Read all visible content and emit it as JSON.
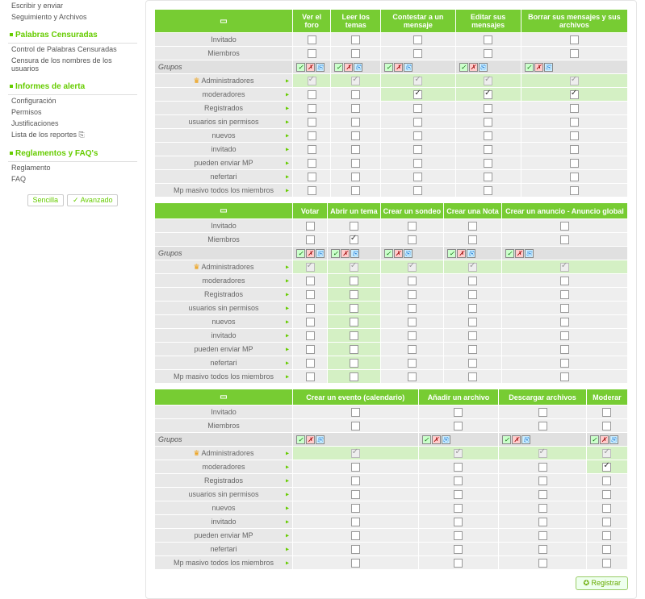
{
  "sidebar": {
    "loose_items": [
      "Escribir y enviar",
      "Seguimiento y Archivos"
    ],
    "sections": [
      {
        "title": "Palabras Censuradas",
        "items": [
          "Control de Palabras Censuradas",
          "Censura de los nombres de los usuarios"
        ]
      },
      {
        "title": "Informes de alerta",
        "items": [
          "Configuración",
          "Permisos",
          "Justificaciones",
          "Lista de los reportes ⎘"
        ]
      },
      {
        "title": "Reglamentos y FAQ's",
        "items": [
          "Reglamento",
          "FAQ"
        ]
      }
    ],
    "toggle_simple": "Sencilla",
    "toggle_advanced": "✓ Avanzado"
  },
  "row_labels": {
    "invitado": "Invitado",
    "miembros": "Miembros",
    "grupos": "Grupos",
    "administradores": "Administradores",
    "moderadores": "moderadores",
    "registrados": "Registrados",
    "usuarios_sin": "usuarios sin permisos",
    "nuevos": "nuevos",
    "invitado2": "invitado",
    "pueden_mp": "pueden enviar MP",
    "nefertari": "nefertari",
    "mp_masivo": "Mp masivo todos los miembros"
  },
  "tables": [
    {
      "headers": [
        "Ver el foro",
        "Leer los temas",
        "Contestar a un mensaje",
        "Editar sus mensajes",
        "Borrar sus mensajes y sus archivos"
      ],
      "rows": [
        {
          "k": "invitado",
          "g": false,
          "c": [
            0,
            0,
            0,
            0,
            0
          ]
        },
        {
          "k": "miembros",
          "g": false,
          "c": [
            0,
            0,
            0,
            0,
            0
          ]
        },
        {
          "k": "grupos",
          "grp": true,
          "ic": true
        },
        {
          "k": "administradores",
          "g": true,
          "crown": true,
          "c": [
            3,
            3,
            3,
            3,
            3
          ]
        },
        {
          "k": "moderadores",
          "g": true,
          "c": [
            0,
            0,
            2,
            2,
            2
          ]
        },
        {
          "k": "registrados",
          "g": true,
          "c": [
            0,
            0,
            0,
            0,
            0
          ]
        },
        {
          "k": "usuarios_sin",
          "g": true,
          "c": [
            0,
            0,
            0,
            0,
            0
          ]
        },
        {
          "k": "nuevos",
          "g": true,
          "c": [
            0,
            0,
            0,
            0,
            0
          ]
        },
        {
          "k": "invitado2",
          "g": true,
          "c": [
            0,
            0,
            0,
            0,
            0
          ]
        },
        {
          "k": "pueden_mp",
          "g": true,
          "c": [
            0,
            0,
            0,
            0,
            0
          ]
        },
        {
          "k": "nefertari",
          "g": true,
          "c": [
            0,
            0,
            0,
            0,
            0
          ]
        },
        {
          "k": "mp_masivo",
          "g": true,
          "c": [
            0,
            0,
            0,
            0,
            0
          ]
        }
      ]
    },
    {
      "headers": [
        "Votar",
        "Abrir un tema",
        "Crear un sondeo",
        "Crear una Nota",
        "Crear un anuncio - Anuncio global"
      ],
      "rows": [
        {
          "k": "invitado",
          "g": false,
          "c": [
            0,
            0,
            0,
            0,
            0
          ]
        },
        {
          "k": "miembros",
          "g": false,
          "c": [
            0,
            1,
            0,
            0,
            0
          ]
        },
        {
          "k": "grupos",
          "grp": true,
          "ic": true
        },
        {
          "k": "administradores",
          "g": true,
          "crown": true,
          "c": [
            3,
            3,
            3,
            3,
            3
          ]
        },
        {
          "k": "moderadores",
          "g": true,
          "c": [
            0,
            4,
            0,
            0,
            0
          ]
        },
        {
          "k": "registrados",
          "g": true,
          "c": [
            0,
            4,
            0,
            0,
            0
          ]
        },
        {
          "k": "usuarios_sin",
          "g": true,
          "c": [
            0,
            4,
            0,
            0,
            0
          ]
        },
        {
          "k": "nuevos",
          "g": true,
          "c": [
            0,
            4,
            0,
            0,
            0
          ]
        },
        {
          "k": "invitado2",
          "g": true,
          "c": [
            0,
            4,
            0,
            0,
            0
          ]
        },
        {
          "k": "pueden_mp",
          "g": true,
          "c": [
            0,
            4,
            0,
            0,
            0
          ]
        },
        {
          "k": "nefertari",
          "g": true,
          "c": [
            0,
            4,
            0,
            0,
            0
          ]
        },
        {
          "k": "mp_masivo",
          "g": true,
          "c": [
            0,
            4,
            0,
            0,
            0
          ]
        }
      ]
    },
    {
      "headers": [
        "Crear un evento (calendario)",
        "Añadir un archivo",
        "Descargar archivos",
        "Moderar"
      ],
      "rows": [
        {
          "k": "invitado",
          "g": false,
          "c": [
            0,
            0,
            0,
            0
          ]
        },
        {
          "k": "miembros",
          "g": false,
          "c": [
            0,
            0,
            0,
            0
          ]
        },
        {
          "k": "grupos",
          "grp": true,
          "ic": true
        },
        {
          "k": "administradores",
          "g": true,
          "crown": true,
          "c": [
            3,
            3,
            3,
            3
          ]
        },
        {
          "k": "moderadores",
          "g": true,
          "c": [
            0,
            0,
            0,
            2
          ]
        },
        {
          "k": "registrados",
          "g": true,
          "c": [
            0,
            0,
            0,
            0
          ]
        },
        {
          "k": "usuarios_sin",
          "g": true,
          "c": [
            0,
            0,
            0,
            0
          ]
        },
        {
          "k": "nuevos",
          "g": true,
          "c": [
            0,
            0,
            0,
            0
          ]
        },
        {
          "k": "invitado2",
          "g": true,
          "c": [
            0,
            0,
            0,
            0
          ]
        },
        {
          "k": "pueden_mp",
          "g": true,
          "c": [
            0,
            0,
            0,
            0
          ]
        },
        {
          "k": "nefertari",
          "g": true,
          "c": [
            0,
            0,
            0,
            0
          ]
        },
        {
          "k": "mp_masivo",
          "g": true,
          "c": [
            0,
            0,
            0,
            0
          ]
        }
      ]
    }
  ],
  "register_btn": "Registrar",
  "colors": {
    "accent": "#77cc33",
    "header_bg": "#77cc33",
    "row_bg": "#eeeeee",
    "hl_bg": "#d4f0c4"
  }
}
